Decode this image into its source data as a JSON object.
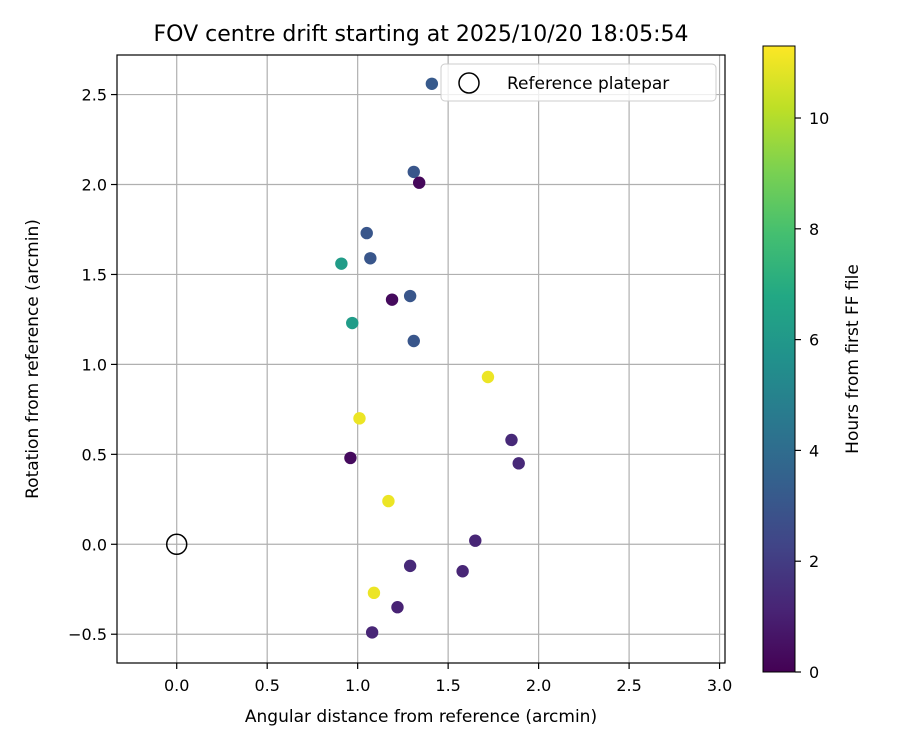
{
  "chart_data": {
    "type": "scatter",
    "title": "FOV centre drift starting at 2025/10/20 18:05:54",
    "xlabel": "Angular distance from reference (arcmin)",
    "ylabel": "Rotation from reference (arcmin)",
    "xlim": [
      -0.33,
      3.03
    ],
    "ylim": [
      -0.66,
      2.72
    ],
    "xticks": [
      0.0,
      0.5,
      1.0,
      1.5,
      2.0,
      2.5,
      3.0
    ],
    "xtick_labels": [
      "0.0",
      "0.5",
      "1.0",
      "1.5",
      "2.0",
      "2.5",
      "3.0"
    ],
    "yticks": [
      -0.5,
      0.0,
      0.5,
      1.0,
      1.5,
      2.0,
      2.5
    ],
    "ytick_labels": [
      "−0.5",
      "0.0",
      "0.5",
      "1.0",
      "1.5",
      "2.0",
      "2.5"
    ],
    "grid": true,
    "colormap": "viridis",
    "colorbar": {
      "label": "Hours from first FF file",
      "range": [
        0,
        11.3
      ],
      "ticks": [
        0,
        2,
        4,
        6,
        8,
        10
      ],
      "tick_labels": [
        "0",
        "2",
        "4",
        "6",
        "8",
        "10"
      ]
    },
    "legend": {
      "position": "top-right",
      "entries": [
        {
          "label": "Reference platepar",
          "marker": "hollow-circle"
        }
      ]
    },
    "reference_point": {
      "x": 0.0,
      "y": 0.0
    },
    "points": [
      {
        "x": 1.41,
        "y": 2.56,
        "hours": 3.2
      },
      {
        "x": 1.31,
        "y": 2.07,
        "hours": 3.0
      },
      {
        "x": 1.34,
        "y": 2.01,
        "hours": 0.2
      },
      {
        "x": 1.05,
        "y": 1.73,
        "hours": 3.0
      },
      {
        "x": 1.07,
        "y": 1.59,
        "hours": 3.0
      },
      {
        "x": 0.91,
        "y": 1.56,
        "hours": 6.2
      },
      {
        "x": 1.29,
        "y": 1.38,
        "hours": 3.0
      },
      {
        "x": 1.19,
        "y": 1.36,
        "hours": 0.3
      },
      {
        "x": 0.97,
        "y": 1.23,
        "hours": 6.2
      },
      {
        "x": 1.31,
        "y": 1.13,
        "hours": 3.0
      },
      {
        "x": 1.72,
        "y": 0.93,
        "hours": 11.0
      },
      {
        "x": 1.01,
        "y": 0.7,
        "hours": 11.0
      },
      {
        "x": 1.85,
        "y": 0.58,
        "hours": 1.3
      },
      {
        "x": 0.96,
        "y": 0.48,
        "hours": 0.3
      },
      {
        "x": 1.89,
        "y": 0.45,
        "hours": 1.3
      },
      {
        "x": 1.17,
        "y": 0.24,
        "hours": 11.0
      },
      {
        "x": 1.65,
        "y": 0.02,
        "hours": 1.2
      },
      {
        "x": 1.29,
        "y": -0.12,
        "hours": 1.3
      },
      {
        "x": 1.58,
        "y": -0.15,
        "hours": 1.2
      },
      {
        "x": 1.09,
        "y": -0.27,
        "hours": 11.0
      },
      {
        "x": 1.22,
        "y": -0.35,
        "hours": 1.1
      },
      {
        "x": 1.08,
        "y": -0.49,
        "hours": 1.2
      }
    ]
  }
}
